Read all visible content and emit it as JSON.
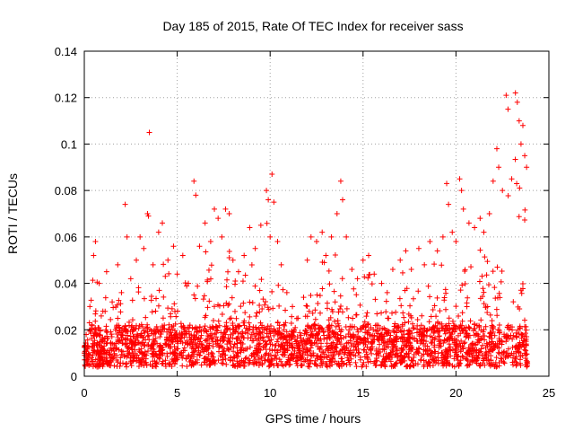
{
  "chart_data": {
    "type": "scatter",
    "title": "Day 185 of 2015, Rate Of TEC Index for receiver sass",
    "xlabel": "GPS time / hours",
    "ylabel": "ROTI / TECUs",
    "xlim": [
      0,
      25
    ],
    "ylim": [
      0,
      0.14
    ],
    "xticks": [
      0,
      5,
      10,
      15,
      20,
      25
    ],
    "xtick_labels": [
      "0",
      "5",
      "10",
      "15",
      "20",
      "25"
    ],
    "yticks": [
      0,
      0.02,
      0.04,
      0.06,
      0.08,
      0.1,
      0.12,
      0.14
    ],
    "ytick_labels": [
      "0",
      "0.02",
      "0.04",
      "0.06",
      "0.08",
      "0.1",
      "0.12",
      "0.14"
    ],
    "grid": true,
    "marker": "plus",
    "series": [
      {
        "name": "ROTI",
        "color": "#ff0000",
        "points": [
          [
            0.1,
            0.018
          ],
          [
            0.3,
            0.03
          ],
          [
            0.5,
            0.052
          ],
          [
            0.6,
            0.058
          ],
          [
            0.8,
            0.04
          ],
          [
            1.0,
            0.028
          ],
          [
            1.2,
            0.045
          ],
          [
            1.5,
            0.032
          ],
          [
            1.8,
            0.048
          ],
          [
            2.0,
            0.036
          ],
          [
            2.2,
            0.074
          ],
          [
            2.3,
            0.06
          ],
          [
            2.5,
            0.042
          ],
          [
            2.8,
            0.05
          ],
          [
            3.0,
            0.06
          ],
          [
            3.2,
            0.055
          ],
          [
            3.4,
            0.07
          ],
          [
            3.45,
            0.069
          ],
          [
            3.5,
            0.105
          ],
          [
            3.7,
            0.048
          ],
          [
            4.0,
            0.062
          ],
          [
            4.2,
            0.066
          ],
          [
            4.5,
            0.05
          ],
          [
            4.8,
            0.056
          ],
          [
            5.0,
            0.044
          ],
          [
            5.3,
            0.052
          ],
          [
            5.6,
            0.04
          ],
          [
            5.9,
            0.084
          ],
          [
            6.0,
            0.078
          ],
          [
            6.2,
            0.056
          ],
          [
            6.5,
            0.066
          ],
          [
            6.8,
            0.058
          ],
          [
            7.0,
            0.072
          ],
          [
            7.2,
            0.068
          ],
          [
            7.4,
            0.06
          ],
          [
            7.6,
            0.072
          ],
          [
            7.8,
            0.07
          ],
          [
            8.0,
            0.05
          ],
          [
            8.3,
            0.045
          ],
          [
            8.6,
            0.052
          ],
          [
            8.9,
            0.064
          ],
          [
            9.2,
            0.055
          ],
          [
            9.5,
            0.065
          ],
          [
            9.8,
            0.08
          ],
          [
            9.9,
            0.076
          ],
          [
            10.0,
            0.06
          ],
          [
            10.1,
            0.087
          ],
          [
            10.2,
            0.075
          ],
          [
            10.4,
            0.058
          ],
          [
            10.6,
            0.048
          ],
          [
            10.9,
            0.036
          ],
          [
            11.2,
            0.03
          ],
          [
            11.5,
            0.025
          ],
          [
            11.8,
            0.034
          ],
          [
            12.0,
            0.05
          ],
          [
            12.2,
            0.06
          ],
          [
            12.5,
            0.058
          ],
          [
            12.8,
            0.062
          ],
          [
            13.0,
            0.052
          ],
          [
            13.3,
            0.06
          ],
          [
            13.6,
            0.07
          ],
          [
            13.8,
            0.084
          ],
          [
            13.9,
            0.076
          ],
          [
            14.1,
            0.06
          ],
          [
            14.4,
            0.046
          ],
          [
            14.7,
            0.042
          ],
          [
            15.0,
            0.05
          ],
          [
            15.3,
            0.052
          ],
          [
            15.6,
            0.044
          ],
          [
            16.0,
            0.04
          ],
          [
            16.3,
            0.036
          ],
          [
            16.6,
            0.046
          ],
          [
            17.0,
            0.05
          ],
          [
            17.3,
            0.054
          ],
          [
            17.6,
            0.046
          ],
          [
            18.0,
            0.055
          ],
          [
            18.3,
            0.048
          ],
          [
            18.6,
            0.058
          ],
          [
            19.0,
            0.054
          ],
          [
            19.3,
            0.06
          ],
          [
            19.5,
            0.083
          ],
          [
            19.6,
            0.074
          ],
          [
            19.8,
            0.062
          ],
          [
            20.0,
            0.058
          ],
          [
            20.2,
            0.085
          ],
          [
            20.3,
            0.08
          ],
          [
            20.4,
            0.072
          ],
          [
            20.7,
            0.066
          ],
          [
            21.0,
            0.064
          ],
          [
            21.3,
            0.068
          ],
          [
            21.5,
            0.062
          ],
          [
            21.8,
            0.07
          ],
          [
            22.0,
            0.084
          ],
          [
            22.2,
            0.098
          ],
          [
            22.3,
            0.09
          ],
          [
            22.5,
            0.08
          ],
          [
            22.7,
            0.121
          ],
          [
            22.8,
            0.115
          ],
          [
            23.0,
            0.085
          ],
          [
            23.2,
            0.122
          ],
          [
            23.3,
            0.118
          ],
          [
            23.4,
            0.11
          ],
          [
            23.5,
            0.1
          ],
          [
            23.6,
            0.108
          ],
          [
            23.7,
            0.095
          ],
          [
            23.8,
            0.09
          ]
        ]
      }
    ]
  }
}
